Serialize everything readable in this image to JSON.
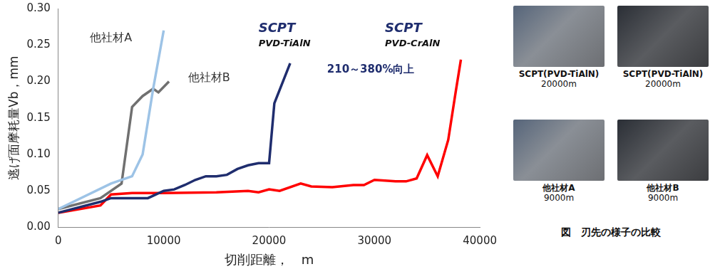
{
  "chart_data": {
    "type": "line",
    "x_label": "切削距離，　m",
    "y_label": "逃げ面摩耗量Vb，mm",
    "xlim": [
      0,
      40000
    ],
    "xticks": [
      0,
      10000,
      20000,
      30000,
      40000
    ],
    "ylim": [
      0,
      0.3
    ],
    "yticks": [
      {
        "value": 0,
        "label": "0.00"
      },
      0.05,
      {
        "value": 0.1,
        "label": "0.10"
      },
      0.15,
      {
        "value": 0.2,
        "label": "0.20"
      },
      0.25,
      {
        "value": 0.3,
        "label": "0.30"
      }
    ],
    "grid": false,
    "annotations": [
      "210～380%向上"
    ],
    "series": [
      {
        "name": "他社材A",
        "color": "#9dc3e6",
        "x": [
          0,
          5000,
          7000,
          8000,
          9000,
          10000
        ],
        "values": [
          0.025,
          0.06,
          0.07,
          0.1,
          0.19,
          0.27
        ]
      },
      {
        "name": "他社材B",
        "color": "#707070",
        "x": [
          0,
          4000,
          6000,
          7000,
          8000,
          9000,
          9500,
          10500
        ],
        "values": [
          0.025,
          0.04,
          0.06,
          0.165,
          0.18,
          0.19,
          0.185,
          0.2
        ]
      },
      {
        "name": "SCPT PVD-TiAlN",
        "color": "#1f2d6e",
        "x": [
          0,
          4000,
          5000,
          8500,
          10000,
          11000,
          12000,
          13000,
          14000,
          15000,
          16000,
          17000,
          18000,
          19000,
          20000,
          20500,
          22000
        ],
        "values": [
          0.02,
          0.035,
          0.04,
          0.04,
          0.05,
          0.052,
          0.058,
          0.065,
          0.07,
          0.07,
          0.072,
          0.08,
          0.085,
          0.088,
          0.088,
          0.17,
          0.225
        ]
      },
      {
        "name": "SCPT PVD-CrAlN",
        "color": "#ff0000",
        "x": [
          0,
          4000,
          5000,
          7000,
          10000,
          15000,
          18000,
          19000,
          20000,
          21000,
          23000,
          24000,
          26000,
          28000,
          29000,
          30000,
          32000,
          33000,
          34000,
          35000,
          36000,
          37000,
          37700,
          38200
        ],
        "values": [
          0.02,
          0.03,
          0.045,
          0.047,
          0.047,
          0.048,
          0.05,
          0.048,
          0.052,
          0.05,
          0.06,
          0.056,
          0.055,
          0.058,
          0.058,
          0.065,
          0.063,
          0.063,
          0.067,
          0.099,
          0.07,
          0.12,
          0.185,
          0.23
        ]
      }
    ]
  },
  "figure_panel": {
    "title": "図　刃先の様子の比較",
    "photos": [
      {
        "label": "SCPT(PVD-TiAlN)",
        "distance": "20000m"
      },
      {
        "label": "SCPT(PVD-TiAlN)",
        "distance": "20000m"
      },
      {
        "label": "他社材A",
        "distance": "9000m"
      },
      {
        "label": "他社材B",
        "distance": "9000m"
      }
    ]
  }
}
